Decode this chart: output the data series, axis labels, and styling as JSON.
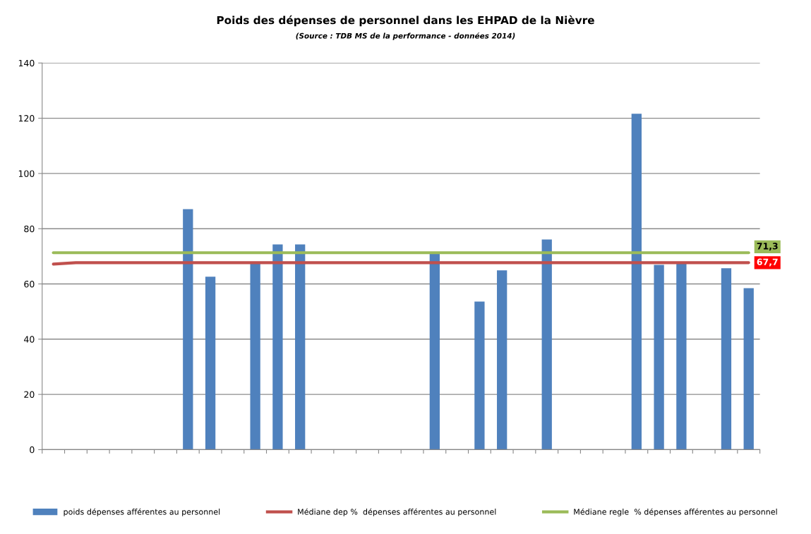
{
  "chart_data": {
    "type": "bar",
    "title": "Poids des dépenses de personnel dans les EHPAD de la Nièvre",
    "subtitle": "(Source : TDB MS de la performance - données 2014)",
    "categories": [
      null,
      null,
      null,
      null,
      null,
      null,
      null,
      null,
      null,
      null,
      null,
      null,
      null,
      null,
      null,
      null,
      null,
      null,
      null,
      null,
      null,
      null,
      null,
      null,
      null,
      null,
      null,
      null,
      null,
      null,
      null,
      null
    ],
    "series": [
      {
        "name": "poids dépenses afférentes au personnel",
        "color": "#4f81bd",
        "values": [
          null,
          null,
          null,
          null,
          null,
          null,
          87.1,
          62.6,
          null,
          67.8,
          74.3,
          74.3,
          null,
          null,
          null,
          null,
          null,
          71.0,
          null,
          53.6,
          64.9,
          null,
          76.1,
          null,
          null,
          null,
          121.6,
          66.9,
          67.7,
          null,
          65.7,
          58.5
        ]
      },
      {
        "name": "Médiane dep %  dépenses afférentes au personnel",
        "type": "line",
        "color": "#c0504d",
        "values": [
          67.2,
          67.7,
          67.7,
          67.7,
          67.7,
          67.7,
          67.7,
          67.7,
          67.7,
          67.7,
          67.7,
          67.7,
          67.7,
          67.7,
          67.7,
          67.7,
          67.7,
          67.7,
          67.7,
          67.7,
          67.7,
          67.7,
          67.7,
          67.7,
          67.7,
          67.7,
          67.7,
          67.7,
          67.7,
          67.7,
          67.7,
          67.7
        ],
        "value_labels": [
          null,
          null,
          null,
          null,
          null,
          null,
          null,
          null,
          null,
          null,
          null,
          null,
          null,
          null,
          null,
          null,
          null,
          null,
          null,
          null,
          null,
          null,
          null,
          null,
          null,
          null,
          null,
          null,
          null,
          null,
          null,
          "67,7"
        ]
      },
      {
        "name": "Médiane regle  % dépenses afférentes au personnel",
        "type": "line",
        "color": "#9bbb59",
        "values": [
          71.3,
          71.3,
          71.3,
          71.3,
          71.3,
          71.3,
          71.3,
          71.3,
          71.3,
          71.3,
          71.3,
          71.3,
          71.3,
          71.3,
          71.3,
          71.3,
          71.3,
          71.3,
          71.3,
          71.3,
          71.3,
          71.3,
          71.3,
          71.3,
          71.3,
          71.3,
          71.3,
          71.3,
          71.3,
          71.3,
          71.3,
          71.3
        ],
        "value_labels": [
          null,
          null,
          null,
          null,
          null,
          null,
          null,
          null,
          null,
          null,
          null,
          null,
          null,
          null,
          null,
          null,
          null,
          null,
          null,
          null,
          null,
          null,
          null,
          null,
          null,
          null,
          null,
          null,
          null,
          null,
          null,
          "71,3"
        ]
      }
    ],
    "ylim": [
      0,
      140
    ],
    "yticks": [
      0,
      20,
      40,
      60,
      80,
      100,
      120,
      140
    ],
    "grid": "y",
    "legend": "bottom",
    "tick_labels": "y"
  }
}
